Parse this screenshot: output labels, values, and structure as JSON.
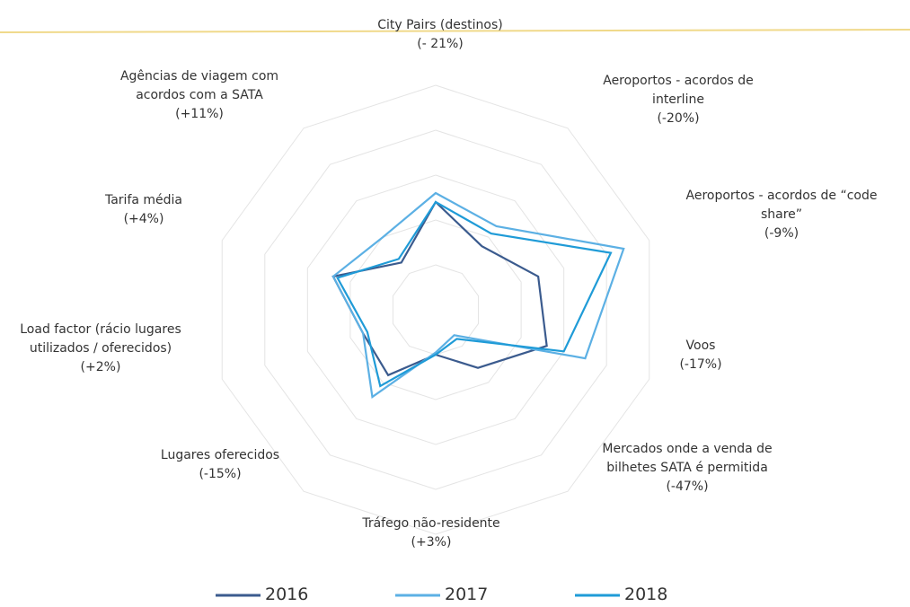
{
  "chart_data": {
    "type": "radar",
    "categories": [
      "City Pairs (destinos)\n(- 21%)",
      "Aeroportos - acordos de\ninterline\n(-20%)",
      "Aeroportos - acordos de “code\nshare”\n(-9%)",
      "Voos\n(-17%)",
      "Mercados onde a venda de\nbilhetes SATA é permitida\n(-47%)",
      "Tráfego não-residente\n(+3%)",
      "Lugares oferecidos\n(-15%)",
      "Load factor (rácio lugares\nutilizados / oferecidos)\n(+2%)",
      "Tarifa média\n(+4%)",
      "Agências de viagem com\nacordos com a SATA\n(+11%)"
    ],
    "series": [
      {
        "name": "2016",
        "color": "#3b5b8e",
        "values": [
          2.4,
          1.75,
          2.4,
          2.6,
          1.6,
          1.0,
          1.8,
          1.7,
          2.4,
          1.3
        ]
      },
      {
        "name": "2017",
        "color": "#5cb0e4",
        "values": [
          2.6,
          2.3,
          4.4,
          3.5,
          0.7,
          0.95,
          2.4,
          1.7,
          2.4,
          2.0
        ]
      },
      {
        "name": "2018",
        "color": "#1f9bd7",
        "values": [
          2.4,
          2.1,
          4.1,
          3.0,
          0.8,
          1.0,
          2.1,
          1.6,
          2.3,
          1.4
        ]
      }
    ],
    "rlim": [
      0,
      5
    ],
    "rticks": [
      1,
      2,
      3,
      4,
      5
    ],
    "grid": true
  }
}
